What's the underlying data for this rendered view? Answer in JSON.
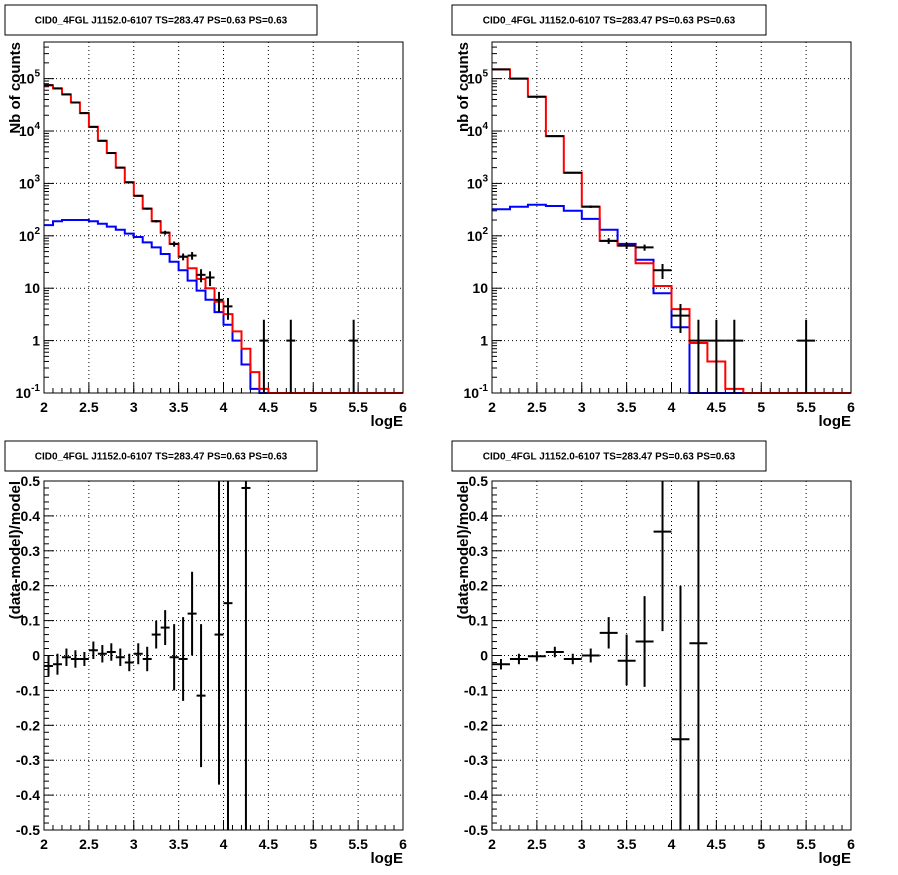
{
  "chart_data": [
    {
      "type": "histogram",
      "title": "CID0_4FGL J1152.0-6107 TS=283.47 PS=0.63 PS=0.63",
      "xlabel": "logE",
      "ylabel": "Nb of counts",
      "xlim": [
        2,
        6
      ],
      "ylim": [
        0.1,
        500000
      ],
      "yscale": "log",
      "grid": true,
      "x_ticks": [
        "2",
        "2.5",
        "3",
        "3.5",
        "4",
        "4.5",
        "5",
        "5.5",
        "6"
      ],
      "y_ticks": [
        "10^-1",
        "1",
        "10",
        "10^2",
        "10^3",
        "10^4",
        "10^5"
      ],
      "bin_edges": [
        2.0,
        2.1,
        2.2,
        2.3,
        2.4,
        2.5,
        2.6,
        2.7,
        2.8,
        2.9,
        3.0,
        3.1,
        3.2,
        3.3,
        3.4,
        3.5,
        3.6,
        3.7,
        3.8,
        3.9,
        4.0,
        4.1,
        4.2,
        4.3,
        4.4,
        4.5,
        4.6,
        4.7,
        4.8,
        4.9,
        5.0,
        5.1,
        5.2,
        5.3,
        5.4,
        5.5,
        5.6,
        5.7,
        5.8,
        5.9,
        6.0
      ],
      "series": [
        {
          "color": "#0000ff",
          "values": [
            160,
            190,
            200,
            200,
            200,
            190,
            170,
            150,
            130,
            110,
            95,
            75,
            60,
            45,
            32,
            22,
            14,
            9,
            6,
            3.5,
            2.0,
            1.0,
            0.35,
            0.12,
            0.1,
            0.1,
            0.1,
            0.1,
            0.1,
            0.1,
            0.1,
            0.1,
            0.1,
            0.1,
            0.1,
            0.1,
            0.1,
            0.1,
            0.1,
            0.1
          ]
        },
        {
          "color": "#ff0000",
          "values": [
            75000,
            65000,
            50000,
            35000,
            22000,
            12000,
            6500,
            3800,
            2000,
            1050,
            580,
            330,
            190,
            115,
            70,
            40,
            24,
            15,
            10,
            5.5,
            3.2,
            1.5,
            0.7,
            0.25,
            0.12,
            0.1,
            0.1,
            0.1,
            0.1,
            0.1,
            0.1,
            0.1,
            0.1,
            0.1,
            0.1,
            0.1,
            0.1,
            0.1,
            0.1,
            0.1
          ]
        }
      ],
      "points": {
        "color": "#000000",
        "x": [
          2.05,
          2.15,
          2.25,
          2.35,
          2.45,
          2.55,
          2.65,
          2.75,
          2.85,
          2.95,
          3.05,
          3.15,
          3.25,
          3.35,
          3.45,
          3.55,
          3.65,
          3.75,
          3.85,
          3.95,
          4.05,
          4.45,
          4.75,
          5.45
        ],
        "y": [
          75000,
          65000,
          50000,
          35000,
          22000,
          12000,
          6500,
          3800,
          2000,
          1050,
          580,
          330,
          190,
          115,
          70,
          40,
          42,
          18,
          16,
          6,
          4.5,
          1,
          1,
          1
        ],
        "y_low": [
          74000,
          64000,
          49500,
          34600,
          21700,
          11800,
          6400,
          3700,
          1950,
          1020,
          560,
          315,
          180,
          105,
          62,
          34,
          35,
          13,
          11,
          3.5,
          2.5,
          0.1,
          0.1,
          0.1
        ],
        "y_high": [
          76000,
          66000,
          50500,
          35400,
          22300,
          12200,
          6600,
          3900,
          2050,
          1080,
          600,
          345,
          200,
          125,
          78,
          46,
          49,
          23,
          21,
          8.5,
          6.5,
          2.5,
          2.5,
          2.5
        ],
        "x_err": 0.05
      }
    },
    {
      "type": "histogram",
      "title": "CID0_4FGL J1152.0-6107 TS=283.47 PS=0.63 PS=0.63",
      "xlabel": "logE",
      "ylabel": "nb of counts",
      "xlim": [
        2,
        6
      ],
      "ylim": [
        0.1,
        500000
      ],
      "yscale": "log",
      "grid": true,
      "x_ticks": [
        "2",
        "2.5",
        "3",
        "3.5",
        "4",
        "4.5",
        "5",
        "5.5",
        "6"
      ],
      "y_ticks": [
        "10^-1",
        "1",
        "10",
        "10^2",
        "10^3",
        "10^4",
        "10^5"
      ],
      "bin_edges": [
        2.0,
        2.2,
        2.4,
        2.6,
        2.8,
        3.0,
        3.2,
        3.4,
        3.6,
        3.8,
        4.0,
        4.2,
        4.4,
        4.6,
        4.8,
        5.0,
        5.2,
        5.4,
        5.6,
        5.8,
        6.0
      ],
      "series": [
        {
          "color": "#0000ff",
          "values": [
            320,
            360,
            390,
            370,
            300,
            210,
            130,
            70,
            35,
            8,
            1.8,
            0.1,
            0.1,
            0.1,
            0.1,
            0.1,
            0.1,
            0.1,
            0.1,
            0.1
          ]
        },
        {
          "color": "#ff0000",
          "values": [
            150000,
            100000,
            45000,
            8000,
            1600,
            360,
            80,
            65,
            30,
            11,
            4,
            0.9,
            0.4,
            0.12,
            0.1,
            0.1,
            0.1,
            0.1,
            0.1,
            0.1
          ]
        }
      ],
      "points": {
        "color": "#000000",
        "x": [
          2.1,
          2.3,
          2.5,
          2.7,
          2.9,
          3.1,
          3.3,
          3.5,
          3.7,
          3.9,
          4.1,
          4.3,
          4.5,
          4.7,
          5.5
        ],
        "y": [
          150000,
          100000,
          45000,
          8000,
          1600,
          360,
          80,
          65,
          60,
          22,
          3,
          1,
          1,
          1,
          1
        ],
        "y_low": [
          149000,
          99000,
          44500,
          7900,
          1550,
          340,
          70,
          56,
          52,
          15,
          1.4,
          0.1,
          0.1,
          0.1,
          0.1
        ],
        "y_high": [
          151000,
          101000,
          45500,
          8100,
          1650,
          380,
          90,
          74,
          68,
          29,
          5,
          2.5,
          2.5,
          2.5,
          2.5
        ],
        "x_err": 0.1
      }
    },
    {
      "type": "scatter",
      "title": "CID0_4FGL J1152.0-6107 TS=283.47 PS=0.63 PS=0.63",
      "xlabel": "logE",
      "ylabel": "(data-model)/model",
      "xlim": [
        2,
        6
      ],
      "ylim": [
        -0.5,
        0.5
      ],
      "grid": true,
      "x_ticks": [
        "2",
        "2.5",
        "3",
        "3.5",
        "4",
        "4.5",
        "5",
        "5.5",
        "6"
      ],
      "y_ticks": [
        "-0.5",
        "-0.4",
        "-0.3",
        "-0.2",
        "-0.1",
        "0",
        "0.1",
        "0.2",
        "0.3",
        "0.4",
        "0.5"
      ],
      "points": {
        "color": "#000000",
        "x": [
          2.05,
          2.15,
          2.25,
          2.35,
          2.45,
          2.55,
          2.65,
          2.75,
          2.85,
          2.95,
          3.05,
          3.15,
          3.25,
          3.35,
          3.45,
          3.55,
          3.65,
          3.75,
          3.95,
          4.05,
          4.25
        ],
        "y": [
          -0.03,
          -0.025,
          -0.005,
          -0.01,
          -0.01,
          0.015,
          0.005,
          0.01,
          -0.005,
          -0.02,
          0.005,
          -0.01,
          0.06,
          0.08,
          -0.005,
          -0.01,
          0.12,
          -0.115,
          0.06,
          0.15,
          0.48
        ],
        "y_low": [
          -0.06,
          -0.055,
          -0.03,
          -0.035,
          -0.03,
          -0.01,
          -0.02,
          -0.015,
          -0.03,
          -0.045,
          -0.025,
          -0.045,
          0.02,
          0.03,
          -0.1,
          -0.13,
          0.0,
          -0.32,
          -0.37,
          -0.5,
          -0.5
        ],
        "y_high": [
          0.0,
          0.005,
          0.02,
          0.015,
          0.01,
          0.04,
          0.03,
          0.035,
          0.02,
          0.005,
          0.035,
          0.025,
          0.1,
          0.13,
          0.09,
          0.11,
          0.24,
          0.09,
          0.5,
          0.5,
          0.5
        ],
        "x_err": 0.05
      }
    },
    {
      "type": "scatter",
      "title": "CID0_4FGL J1152.0-6107 TS=283.47 PS=0.63 PS=0.63",
      "xlabel": "logE",
      "ylabel": "(data-model)/model",
      "xlim": [
        2,
        6
      ],
      "ylim": [
        -0.5,
        0.5
      ],
      "grid": true,
      "x_ticks": [
        "2",
        "2.5",
        "3",
        "3.5",
        "4",
        "4.5",
        "5",
        "5.5",
        "6"
      ],
      "y_ticks": [
        "-0.5",
        "-0.4",
        "-0.3",
        "-0.2",
        "-0.1",
        "0",
        "0.1",
        "0.2",
        "0.3",
        "0.4",
        "0.5"
      ],
      "points": {
        "color": "#000000",
        "x": [
          2.1,
          2.3,
          2.5,
          2.7,
          2.9,
          3.1,
          3.3,
          3.5,
          3.7,
          3.9,
          4.1,
          4.3
        ],
        "y": [
          -0.025,
          -0.01,
          -0.002,
          0.01,
          -0.01,
          0.0,
          0.065,
          -0.015,
          0.04,
          0.355,
          -0.24,
          0.035
        ],
        "y_low": [
          -0.04,
          -0.025,
          -0.015,
          -0.005,
          -0.025,
          -0.02,
          0.02,
          -0.085,
          -0.09,
          0.07,
          -0.5,
          -0.5
        ],
        "y_high": [
          -0.01,
          0.005,
          0.012,
          0.025,
          0.005,
          0.02,
          0.11,
          0.06,
          0.17,
          0.5,
          0.2,
          0.5
        ],
        "x_err": 0.1
      }
    }
  ]
}
